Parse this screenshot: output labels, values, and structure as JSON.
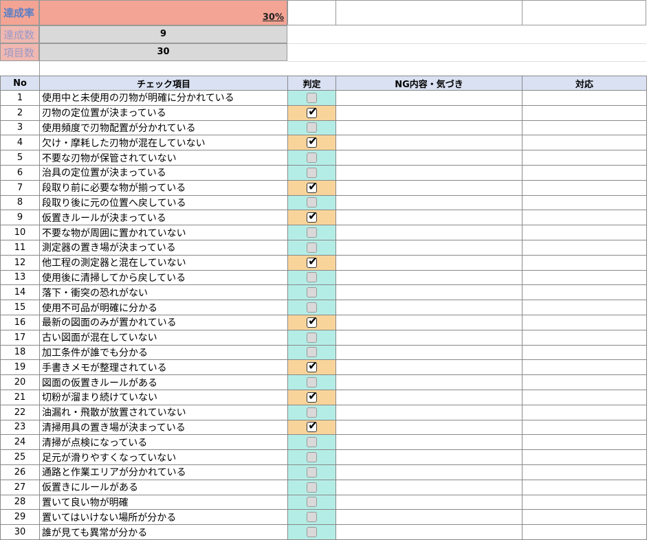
{
  "summary": {
    "rate_label": "達成率",
    "rate_value": "30%",
    "achieved_label": "達成数",
    "achieved_value": "9",
    "total_label": "項目数",
    "total_value": "30"
  },
  "headers": {
    "no": "No",
    "item": "チェック項目",
    "judge": "判定",
    "ng": "NG内容・気づき",
    "action": "対応"
  },
  "colors": {
    "checked": "#f9d49a",
    "unchecked": "#b4ede6",
    "rate": "#f4a494",
    "header": "#d9e1f2"
  },
  "rows": [
    {
      "no": "1",
      "item": "使用中と未使用の刃物が明確に分かれている",
      "checked": false
    },
    {
      "no": "2",
      "item": "刃物の定位置が決まっている",
      "checked": true
    },
    {
      "no": "3",
      "item": "使用頻度で刃物配置が分かれている",
      "checked": false
    },
    {
      "no": "4",
      "item": "欠け・摩耗した刃物が混在していない",
      "checked": true
    },
    {
      "no": "5",
      "item": "不要な刃物が保管されていない",
      "checked": false
    },
    {
      "no": "6",
      "item": "治具の定位置が決まっている",
      "checked": false
    },
    {
      "no": "7",
      "item": "段取り前に必要な物が揃っている",
      "checked": true
    },
    {
      "no": "8",
      "item": "段取り後に元の位置へ戻している",
      "checked": false
    },
    {
      "no": "9",
      "item": "仮置きルールが決まっている",
      "checked": true
    },
    {
      "no": "10",
      "item": "不要な物が周囲に置かれていない",
      "checked": false
    },
    {
      "no": "11",
      "item": "測定器の置き場が決まっている",
      "checked": false
    },
    {
      "no": "12",
      "item": "他工程の測定器と混在していない",
      "checked": true
    },
    {
      "no": "13",
      "item": "使用後に清掃してから戻している",
      "checked": false
    },
    {
      "no": "14",
      "item": "落下・衝突の恐れがない",
      "checked": false
    },
    {
      "no": "15",
      "item": "使用不可品が明確に分かる",
      "checked": false
    },
    {
      "no": "16",
      "item": "最新の図面のみが置かれている",
      "checked": true
    },
    {
      "no": "17",
      "item": "古い図面が混在していない",
      "checked": false
    },
    {
      "no": "18",
      "item": "加工条件が誰でも分かる",
      "checked": false
    },
    {
      "no": "19",
      "item": "手書きメモが整理されている",
      "checked": true
    },
    {
      "no": "20",
      "item": "図面の仮置きルールがある",
      "checked": false
    },
    {
      "no": "21",
      "item": "切粉が溜まり続けていない",
      "checked": true
    },
    {
      "no": "22",
      "item": "油漏れ・飛散が放置されていない",
      "checked": false
    },
    {
      "no": "23",
      "item": "清掃用具の置き場が決まっている",
      "checked": true
    },
    {
      "no": "24",
      "item": "清掃が点検になっている",
      "checked": false
    },
    {
      "no": "25",
      "item": "足元が滑りやすくなっていない",
      "checked": false
    },
    {
      "no": "26",
      "item": "通路と作業エリアが分かれている",
      "checked": false
    },
    {
      "no": "27",
      "item": "仮置きにルールがある",
      "checked": false
    },
    {
      "no": "28",
      "item": "置いて良い物が明確",
      "checked": false
    },
    {
      "no": "29",
      "item": "置いてはいけない場所が分かる",
      "checked": false
    },
    {
      "no": "30",
      "item": "誰が見ても異常が分かる",
      "checked": false
    }
  ]
}
